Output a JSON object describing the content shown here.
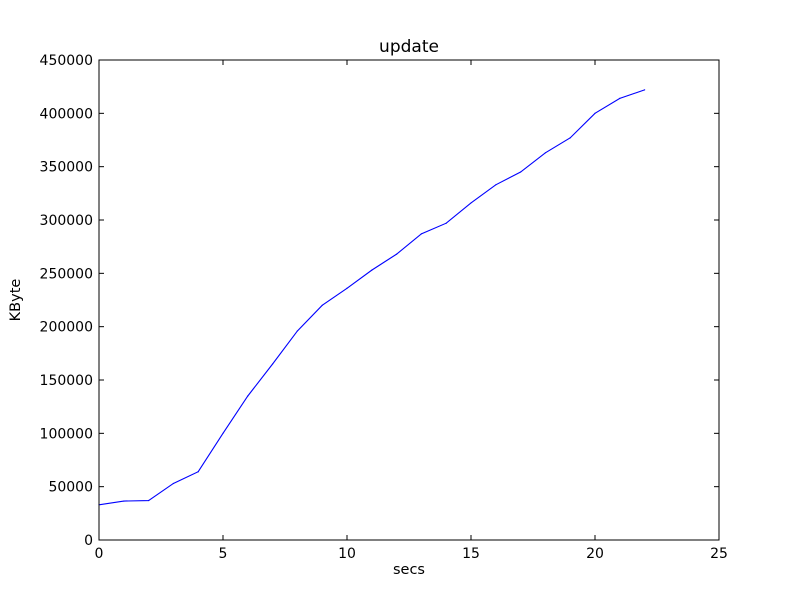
{
  "chart_data": {
    "type": "line",
    "title": "update",
    "xlabel": "secs",
    "ylabel": "KByte",
    "xlim": [
      0,
      25
    ],
    "ylim": [
      0,
      450000
    ],
    "xticks": [
      0,
      5,
      10,
      15,
      20,
      25
    ],
    "yticks": [
      0,
      50000,
      100000,
      150000,
      200000,
      250000,
      300000,
      350000,
      400000,
      450000
    ],
    "grid": false,
    "series": [
      {
        "color": "#0000ff",
        "x": [
          0,
          1,
          2,
          3,
          4,
          5,
          6,
          7,
          8,
          9,
          10,
          11,
          12,
          13,
          14,
          15,
          16,
          17,
          18,
          19,
          20,
          21,
          22
        ],
        "y": [
          33000,
          36500,
          37000,
          53000,
          64000,
          100000,
          135000,
          165000,
          196000,
          220000,
          236000,
          253000,
          268000,
          287000,
          297000,
          316000,
          333000,
          345000,
          363000,
          377000,
          400000,
          414000,
          422000
        ]
      }
    ]
  }
}
